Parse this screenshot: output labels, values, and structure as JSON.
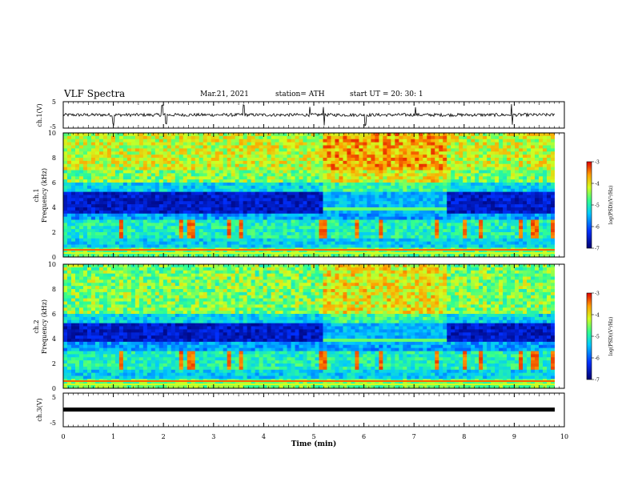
{
  "header": {
    "title": "VLF Spectra",
    "date": "Mar.21, 2021",
    "station": "station= ATH",
    "start_ut": "start  UT =   20: 30: 1"
  },
  "chart_data": [
    {
      "type": "line",
      "panel": "ch1-waveform",
      "ylabel": "ch.1(V)",
      "ylim": [
        -5,
        5
      ],
      "yticks": [
        5,
        -5
      ],
      "xlim": [
        0,
        10
      ],
      "series": [
        {
          "approx_level": 0,
          "noise_amplitude": 1.2,
          "spike_times": [
            1.0,
            1.97,
            2.05,
            3.6,
            4.92,
            5.2,
            6.03,
            7.03,
            8.95
          ]
        }
      ]
    },
    {
      "type": "heatmap",
      "panel": "ch1-spectrogram",
      "ylabel": "ch.1\nFrequency (kHz)",
      "ylim": [
        0,
        10
      ],
      "yticks": [
        "0",
        "2",
        "4",
        "6",
        "8",
        "10"
      ],
      "xlim": [
        0,
        10
      ],
      "colorbar": {
        "label": "log(PSD)(V²/Hz)",
        "range": [
          -7,
          -3
        ],
        "ticks": [
          "-3",
          "-4",
          "-5",
          "-6",
          "-7"
        ]
      },
      "features": {
        "quiet_band_khz": [
          3.5,
          5.2
        ],
        "elevated_segment_min": [
          5.2,
          7.65
        ],
        "elevated_segment_band_khz": [
          3.7,
          4.1
        ],
        "bursts_min": [
          1.15,
          2.35,
          2.55,
          3.3,
          3.55,
          5.2,
          5.85,
          6.35,
          7.45,
          8.0,
          8.35,
          9.15,
          9.4,
          9.75
        ]
      }
    },
    {
      "type": "heatmap",
      "panel": "ch2-spectrogram",
      "ylabel": "ch.2\nFrequency (kHz)",
      "ylim": [
        0,
        10
      ],
      "yticks": [
        "0",
        "2",
        "4",
        "6",
        "8",
        "10"
      ],
      "xlim": [
        0,
        10
      ],
      "colorbar": {
        "label": "log(PSD)(V²/Hz)",
        "range": [
          -7,
          -3
        ],
        "ticks": [
          "-3",
          "-4",
          "-5",
          "-6",
          "-7"
        ]
      },
      "features": {
        "quiet_band_khz": [
          3.8,
          5.0
        ],
        "elevated_segment_min": [
          5.2,
          7.65
        ],
        "elevated_segment_band_khz": [
          3.7,
          4.1
        ],
        "bursts_min": [
          1.15,
          2.35,
          2.55,
          3.3,
          3.55,
          5.2,
          5.85,
          6.35,
          7.45,
          8.0,
          8.35,
          9.15,
          9.4,
          9.75
        ]
      }
    },
    {
      "type": "line",
      "panel": "ch3-waveform",
      "ylabel": "ch.3(V)",
      "ylim": [
        -5,
        5
      ],
      "yticks": [
        5,
        -5
      ],
      "xlim": [
        0,
        10
      ],
      "xlabel": "Time  (min)",
      "xticks": [
        "0",
        "1",
        "2",
        "3",
        "4",
        "5",
        "6",
        "7",
        "8",
        "9",
        "10"
      ],
      "series": [
        {
          "approx_level": 0,
          "noise_amplitude": 0.1
        }
      ]
    }
  ]
}
